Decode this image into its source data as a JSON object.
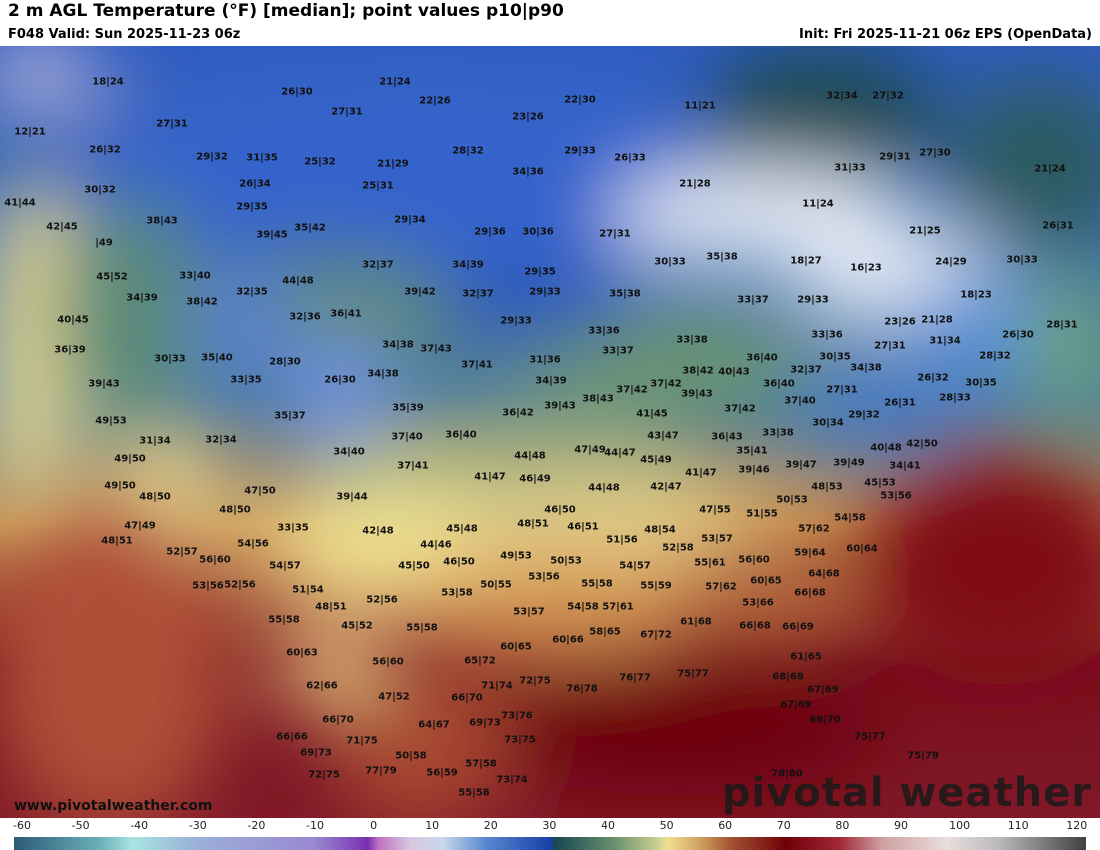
{
  "header": {
    "title": "2 m AGL Temperature (°F) [median]; point values p10|p90",
    "valid": "F048 Valid: Sun 2025-11-23 06z",
    "init": "Init: Fri 2025-11-21 06z EPS (OpenData)"
  },
  "watermark": {
    "site": "www.pivotalweather.com",
    "brand": "pivotal weather"
  },
  "colorbar": {
    "ticks": [
      "-60",
      "-50",
      "-40",
      "-30",
      "-20",
      "-10",
      "0",
      "10",
      "20",
      "30",
      "40",
      "50",
      "60",
      "70",
      "80",
      "90",
      "100",
      "110",
      "120"
    ],
    "min": -60,
    "max": 120,
    "units": "°F"
  },
  "colors": {
    "cold": "#1a40a8",
    "mild": "#f0e090",
    "warm": "#700008"
  },
  "points": [
    "18|24",
    "12|21",
    "26|32",
    "30|32",
    "41|44",
    "27|31",
    "29|32",
    "31|35",
    "26|34",
    "29|35",
    "26|30",
    "27|31",
    "21|24",
    "22|26",
    "25|32",
    "21|29",
    "25|31",
    "29|34",
    "35|42",
    "39|45",
    "38|43",
    "42|45",
    "|49",
    "45|52",
    "33|40",
    "34|39",
    "38|42",
    "32|35",
    "44|48",
    "32|37",
    "39|42",
    "34|39",
    "32|37",
    "23|26",
    "22|30",
    "28|32",
    "34|36",
    "29|33",
    "26|33",
    "11|21",
    "21|28",
    "11|24",
    "32|34",
    "27|32",
    "31|33",
    "29|31",
    "27|30",
    "21|24",
    "21|25",
    "26|31",
    "29|36",
    "30|36",
    "27|31",
    "29|35",
    "29|33",
    "30|33",
    "35|38",
    "18|27",
    "16|23",
    "24|29",
    "30|33",
    "18|23",
    "35|38",
    "33|37",
    "29|33",
    "29|33",
    "33|36",
    "33|37",
    "33|38",
    "40|45",
    "36|39",
    "30|33",
    "35|40",
    "28|30",
    "32|36",
    "36|41",
    "26|30",
    "34|38",
    "37|43",
    "34|38",
    "37|41",
    "31|36",
    "34|39",
    "39|43",
    "33|35",
    "35|37",
    "35|39",
    "36|42",
    "39|43",
    "38|43",
    "37|42",
    "37|42",
    "38|42",
    "40|43",
    "36|40",
    "36|40",
    "32|37",
    "37|40",
    "27|31",
    "34|38",
    "33|36",
    "30|35",
    "23|26",
    "21|28",
    "27|31",
    "31|34",
    "26|30",
    "28|31",
    "28|32",
    "26|32",
    "30|35",
    "28|33",
    "26|31",
    "29|32",
    "30|34",
    "39|43",
    "41|45",
    "37|42",
    "33|38",
    "49|53",
    "31|34",
    "32|34",
    "37|40",
    "36|40",
    "34|40",
    "49|50",
    "49|50",
    "37|41",
    "44|48",
    "47|49",
    "44|47",
    "43|47",
    "45|49",
    "36|43",
    "35|41",
    "39|46",
    "39|47",
    "39|49",
    "40|48",
    "42|50",
    "34|41",
    "45|53",
    "41|47",
    "42|47",
    "44|48",
    "41|47",
    "46|49",
    "48|53",
    "53|56",
    "47|50",
    "48|50",
    "39|44",
    "48|50",
    "46|50",
    "48|51",
    "46|51",
    "45|48",
    "47|55",
    "51|55",
    "50|53",
    "54|58",
    "57|62",
    "60|64",
    "47|49",
    "48|51",
    "52|57",
    "42|48",
    "33|35",
    "44|46",
    "51|56",
    "48|54",
    "53|57",
    "52|58",
    "49|53",
    "50|53",
    "46|50",
    "45|50",
    "54|57",
    "54|56",
    "56|60",
    "53|56",
    "52|56",
    "51|54",
    "53|56",
    "50|55",
    "55|58",
    "54|57",
    "55|61",
    "56|60",
    "59|64",
    "60|65",
    "57|62",
    "64|68",
    "66|68",
    "53|58",
    "52|56",
    "48|51",
    "55|59",
    "55|58",
    "45|52",
    "55|58",
    "53|57",
    "54|58",
    "57|61",
    "53|66",
    "61|68",
    "67|72",
    "58|65",
    "60|66",
    "60|65",
    "66|68",
    "66|69",
    "61|65",
    "60|63",
    "56|60",
    "65|72",
    "72|75",
    "71|74",
    "76|78",
    "76|77",
    "75|77",
    "68|68",
    "67|69",
    "67|69",
    "68|70",
    "62|66",
    "47|52",
    "66|70",
    "69|73",
    "64|67",
    "66|70",
    "66|66",
    "69|73",
    "71|75",
    "73|76",
    "73|75",
    "50|58",
    "72|75",
    "77|79",
    "56|59",
    "57|58",
    "73|74",
    "55|58",
    "75|77",
    "75|79",
    "78|80"
  ]
}
